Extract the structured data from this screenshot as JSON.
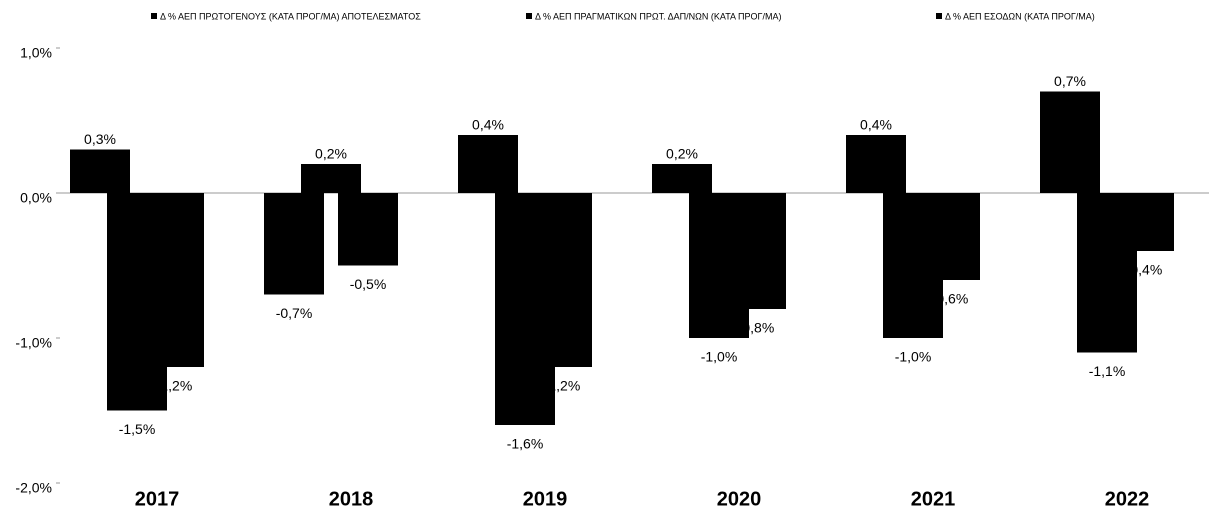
{
  "chart_data": {
    "type": "bar",
    "categories": [
      "2017",
      "2018",
      "2019",
      "2020",
      "2021",
      "2022"
    ],
    "series": [
      {
        "name": "Δ % ΑΕΠ ΠΡΩΤΟΓΕΝΟΥΣ (ΚΑΤΑ ΠΡΟΓ/ΜΑ) ΑΠΟΤΕΛΕΣΜΑΤΟΣ",
        "color": "#000000",
        "values": [
          0.3,
          -0.7,
          0.4,
          0.2,
          0.4,
          0.7
        ],
        "value_labels": [
          "0,3%",
          "-0,7%",
          "0,4%",
          "0,2%",
          "0,4%",
          "0,7%"
        ]
      },
      {
        "name": "Δ % ΑΕΠ ΠΡΑΓΜΑΤΙΚΩΝ ΠΡΩΤ. ΔΑΠ/ΝΩΝ (ΚΑΤΑ ΠΡΟΓ/ΜΑ)",
        "color": "#000000",
        "values": [
          -1.5,
          0.2,
          -1.6,
          -1.0,
          -1.0,
          -1.1
        ],
        "value_labels": [
          "-1,5%",
          "0,2%",
          "-1,6%",
          "-1,0%",
          "-1,0%",
          "-1,1%"
        ]
      },
      {
        "name": "Δ % ΑΕΠ ΕΣΟΔΩΝ (ΚΑΤΑ ΠΡΟΓ/ΜΑ)",
        "color": "#000000",
        "values": [
          -1.2,
          -0.5,
          -1.2,
          -0.8,
          -0.6,
          -0.4
        ],
        "value_labels": [
          "-1,2%",
          "-0,5%",
          "-1,2%",
          "-0,8%",
          "-0,6%",
          "-0,4%"
        ]
      }
    ],
    "ylim": [
      -2,
      1
    ],
    "yticks": [
      {
        "value": 1,
        "label": "1,0%"
      },
      {
        "value": 0,
        "label": "0,0%"
      },
      {
        "value": -1,
        "label": "-1,0%"
      },
      {
        "value": -2,
        "label": "-2,0%"
      }
    ],
    "legend": "top"
  }
}
